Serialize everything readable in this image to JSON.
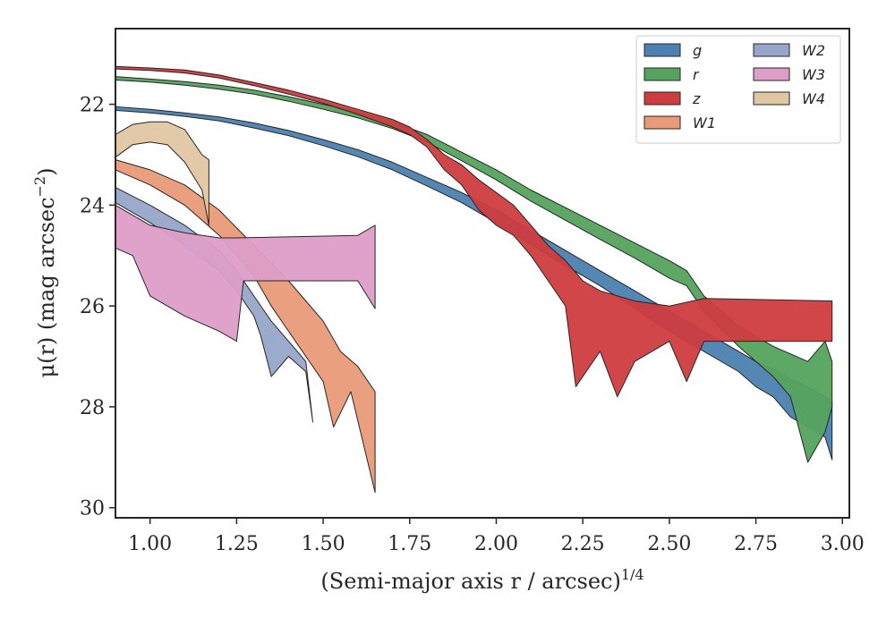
{
  "chart_data": {
    "type": "area",
    "title": "",
    "xlabel": "(Semi-major axis r / arcsec)",
    "xlabel_sup": "1/4",
    "ylabel": "μ(r) (mag arcsec",
    "ylabel_sup": "−2",
    "ylabel_end": ")",
    "xlim": [
      0.9,
      3.02
    ],
    "ylim": [
      30.2,
      20.5
    ],
    "y_inverted": true,
    "grid": false,
    "legend_position": "top-right",
    "legend_columns": 2,
    "x_ticks": [
      1.0,
      1.25,
      1.5,
      1.75,
      2.0,
      2.25,
      2.5,
      2.75,
      3.0
    ],
    "x_tick_labels": [
      "1.00",
      "1.25",
      "1.50",
      "1.75",
      "2.00",
      "2.25",
      "2.50",
      "2.75",
      "3.00"
    ],
    "y_ticks": [
      22,
      24,
      26,
      28,
      30
    ],
    "y_tick_labels": [
      "22",
      "24",
      "26",
      "28",
      "30"
    ],
    "series": [
      {
        "name": "g",
        "color": "#4c81b0",
        "upper": [
          [
            0.9,
            22.05
          ],
          [
            1.0,
            22.1
          ],
          [
            1.1,
            22.17
          ],
          [
            1.2,
            22.25
          ],
          [
            1.3,
            22.37
          ],
          [
            1.4,
            22.52
          ],
          [
            1.5,
            22.7
          ],
          [
            1.6,
            22.9
          ],
          [
            1.7,
            23.15
          ],
          [
            1.8,
            23.45
          ],
          [
            1.9,
            23.75
          ],
          [
            2.0,
            24.1
          ],
          [
            2.1,
            24.5
          ],
          [
            2.2,
            24.9
          ],
          [
            2.3,
            25.3
          ],
          [
            2.4,
            25.7
          ],
          [
            2.5,
            26.1
          ],
          [
            2.6,
            26.5
          ],
          [
            2.7,
            26.9
          ],
          [
            2.75,
            27.1
          ],
          [
            2.8,
            27.25
          ],
          [
            2.85,
            27.45
          ],
          [
            2.9,
            27.6
          ],
          [
            2.95,
            27.8
          ],
          [
            2.97,
            27.9
          ]
        ],
        "lower": [
          [
            0.9,
            22.12
          ],
          [
            1.0,
            22.17
          ],
          [
            1.1,
            22.24
          ],
          [
            1.2,
            22.33
          ],
          [
            1.3,
            22.47
          ],
          [
            1.4,
            22.62
          ],
          [
            1.5,
            22.82
          ],
          [
            1.6,
            23.04
          ],
          [
            1.7,
            23.3
          ],
          [
            1.8,
            23.62
          ],
          [
            1.9,
            23.95
          ],
          [
            2.0,
            24.35
          ],
          [
            2.1,
            24.78
          ],
          [
            2.2,
            25.2
          ],
          [
            2.3,
            25.6
          ],
          [
            2.4,
            26.05
          ],
          [
            2.5,
            26.5
          ],
          [
            2.6,
            26.9
          ],
          [
            2.7,
            27.3
          ],
          [
            2.75,
            27.6
          ],
          [
            2.8,
            27.8
          ],
          [
            2.85,
            28.2
          ],
          [
            2.9,
            28.4
          ],
          [
            2.95,
            28.6
          ],
          [
            2.97,
            29.05
          ]
        ]
      },
      {
        "name": "r",
        "color": "#55a35e",
        "upper": [
          [
            0.9,
            21.45
          ],
          [
            1.0,
            21.5
          ],
          [
            1.1,
            21.55
          ],
          [
            1.2,
            21.62
          ],
          [
            1.3,
            21.72
          ],
          [
            1.4,
            21.85
          ],
          [
            1.5,
            22.0
          ],
          [
            1.6,
            22.15
          ],
          [
            1.7,
            22.35
          ],
          [
            1.8,
            22.6
          ],
          [
            1.9,
            22.95
          ],
          [
            2.0,
            23.3
          ],
          [
            2.1,
            23.7
          ],
          [
            2.2,
            24.05
          ],
          [
            2.3,
            24.4
          ],
          [
            2.4,
            24.75
          ],
          [
            2.5,
            25.1
          ],
          [
            2.55,
            25.3
          ],
          [
            2.6,
            25.8
          ],
          [
            2.7,
            26.4
          ],
          [
            2.8,
            26.8
          ],
          [
            2.9,
            27.1
          ],
          [
            2.95,
            26.7
          ],
          [
            2.97,
            27.1
          ]
        ],
        "lower": [
          [
            0.9,
            21.52
          ],
          [
            1.0,
            21.56
          ],
          [
            1.1,
            21.62
          ],
          [
            1.2,
            21.7
          ],
          [
            1.3,
            21.8
          ],
          [
            1.4,
            21.94
          ],
          [
            1.5,
            22.1
          ],
          [
            1.6,
            22.27
          ],
          [
            1.7,
            22.48
          ],
          [
            1.8,
            22.75
          ],
          [
            1.9,
            23.12
          ],
          [
            2.0,
            23.5
          ],
          [
            2.1,
            23.92
          ],
          [
            2.2,
            24.3
          ],
          [
            2.3,
            24.68
          ],
          [
            2.4,
            25.05
          ],
          [
            2.5,
            25.45
          ],
          [
            2.55,
            25.6
          ],
          [
            2.6,
            26.1
          ],
          [
            2.7,
            26.8
          ],
          [
            2.8,
            27.4
          ],
          [
            2.85,
            27.8
          ],
          [
            2.9,
            29.1
          ],
          [
            2.95,
            28.5
          ],
          [
            2.97,
            28.0
          ]
        ]
      },
      {
        "name": "z",
        "color": "#cd3c3f",
        "upper": [
          [
            0.9,
            21.25
          ],
          [
            1.0,
            21.28
          ],
          [
            1.1,
            21.32
          ],
          [
            1.2,
            21.42
          ],
          [
            1.3,
            21.57
          ],
          [
            1.4,
            21.72
          ],
          [
            1.5,
            21.9
          ],
          [
            1.6,
            22.1
          ],
          [
            1.7,
            22.3
          ],
          [
            1.75,
            22.45
          ],
          [
            1.8,
            22.7
          ],
          [
            1.85,
            23.0
          ],
          [
            1.9,
            23.2
          ],
          [
            1.95,
            23.5
          ],
          [
            2.0,
            23.75
          ],
          [
            2.05,
            24.0
          ],
          [
            2.1,
            24.4
          ],
          [
            2.15,
            24.8
          ],
          [
            2.2,
            25.1
          ],
          [
            2.25,
            25.5
          ],
          [
            2.3,
            25.7
          ],
          [
            2.4,
            25.9
          ],
          [
            2.5,
            26.0
          ],
          [
            2.6,
            25.85
          ],
          [
            2.97,
            25.9
          ]
        ],
        "lower": [
          [
            0.9,
            21.3
          ],
          [
            1.0,
            21.33
          ],
          [
            1.1,
            21.38
          ],
          [
            1.2,
            21.48
          ],
          [
            1.3,
            21.63
          ],
          [
            1.4,
            21.8
          ],
          [
            1.5,
            21.98
          ],
          [
            1.6,
            22.2
          ],
          [
            1.7,
            22.45
          ],
          [
            1.75,
            22.6
          ],
          [
            1.8,
            22.85
          ],
          [
            1.85,
            23.3
          ],
          [
            1.9,
            23.6
          ],
          [
            1.95,
            24.1
          ],
          [
            2.0,
            24.4
          ],
          [
            2.05,
            24.6
          ],
          [
            2.1,
            25.0
          ],
          [
            2.15,
            25.5
          ],
          [
            2.2,
            26.0
          ],
          [
            2.23,
            27.6
          ],
          [
            2.3,
            26.9
          ],
          [
            2.35,
            27.8
          ],
          [
            2.4,
            27.1
          ],
          [
            2.45,
            26.9
          ],
          [
            2.5,
            26.7
          ],
          [
            2.55,
            27.5
          ],
          [
            2.6,
            26.7
          ],
          [
            2.97,
            26.7
          ]
        ]
      },
      {
        "name": "W1",
        "color": "#e99a78",
        "upper": [
          [
            0.9,
            23.1
          ],
          [
            1.0,
            23.3
          ],
          [
            1.1,
            23.6
          ],
          [
            1.2,
            24.1
          ],
          [
            1.3,
            24.8
          ],
          [
            1.4,
            25.5
          ],
          [
            1.45,
            25.9
          ],
          [
            1.5,
            26.3
          ],
          [
            1.55,
            26.9
          ],
          [
            1.6,
            27.2
          ],
          [
            1.65,
            27.7
          ]
        ],
        "lower": [
          [
            0.9,
            23.3
          ],
          [
            1.0,
            23.6
          ],
          [
            1.1,
            24.0
          ],
          [
            1.2,
            24.6
          ],
          [
            1.3,
            25.4
          ],
          [
            1.35,
            26.0
          ],
          [
            1.4,
            26.5
          ],
          [
            1.45,
            27.0
          ],
          [
            1.5,
            27.5
          ],
          [
            1.53,
            28.4
          ],
          [
            1.58,
            27.7
          ],
          [
            1.65,
            29.7
          ]
        ]
      },
      {
        "name": "W2",
        "color": "#97a6c8",
        "upper": [
          [
            0.9,
            23.65
          ],
          [
            1.0,
            24.0
          ],
          [
            1.1,
            24.4
          ],
          [
            1.2,
            24.9
          ],
          [
            1.25,
            25.3
          ],
          [
            1.3,
            25.8
          ],
          [
            1.35,
            26.3
          ],
          [
            1.4,
            26.7
          ],
          [
            1.45,
            27.1
          ],
          [
            1.47,
            28.3
          ]
        ],
        "lower": [
          [
            0.9,
            23.95
          ],
          [
            1.0,
            24.35
          ],
          [
            1.1,
            24.8
          ],
          [
            1.2,
            25.3
          ],
          [
            1.25,
            25.7
          ],
          [
            1.3,
            26.2
          ],
          [
            1.32,
            26.6
          ],
          [
            1.35,
            27.4
          ],
          [
            1.4,
            27.0
          ],
          [
            1.45,
            27.3
          ],
          [
            1.47,
            28.3
          ]
        ]
      },
      {
        "name": "W3",
        "color": "#dd9ec8",
        "upper": [
          [
            0.9,
            24.0
          ],
          [
            1.0,
            24.4
          ],
          [
            1.1,
            24.55
          ],
          [
            1.2,
            24.65
          ],
          [
            1.25,
            24.65
          ],
          [
            1.6,
            24.6
          ],
          [
            1.65,
            24.4
          ]
        ],
        "lower": [
          [
            0.9,
            24.85
          ],
          [
            0.95,
            25.0
          ],
          [
            1.0,
            25.8
          ],
          [
            1.1,
            26.2
          ],
          [
            1.2,
            26.5
          ],
          [
            1.25,
            26.7
          ],
          [
            1.27,
            25.5
          ],
          [
            1.6,
            25.5
          ],
          [
            1.65,
            26.05
          ]
        ]
      },
      {
        "name": "W4",
        "color": "#e0c7a4",
        "upper": [
          [
            0.9,
            22.6
          ],
          [
            0.95,
            22.4
          ],
          [
            1.0,
            22.35
          ],
          [
            1.05,
            22.35
          ],
          [
            1.1,
            22.5
          ],
          [
            1.15,
            23.0
          ],
          [
            1.17,
            23.1
          ]
        ],
        "lower": [
          [
            0.9,
            23.05
          ],
          [
            0.95,
            22.8
          ],
          [
            1.0,
            22.75
          ],
          [
            1.05,
            22.8
          ],
          [
            1.1,
            23.15
          ],
          [
            1.15,
            23.7
          ],
          [
            1.17,
            24.4
          ]
        ]
      }
    ]
  }
}
